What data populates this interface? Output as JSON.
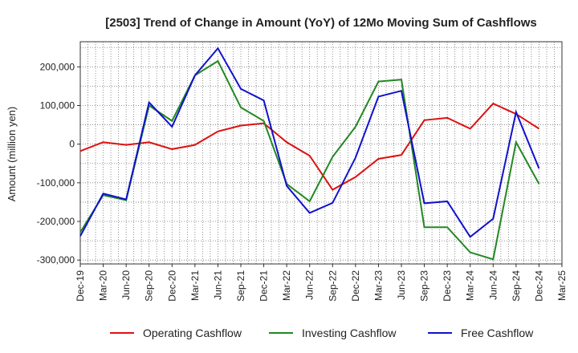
{
  "chart_data": {
    "type": "line",
    "title": "[2503]  Trend of Change in Amount (YoY) of 12Mo Moving Sum of Cashflows",
    "xlabel": "",
    "ylabel": "Amount (million yen)",
    "ylim": [
      -310000,
      265000
    ],
    "yticks": [
      -300000,
      -200000,
      -100000,
      0,
      100000,
      200000
    ],
    "ytick_labels": [
      "-300,000",
      "-200,000",
      "-100,000",
      "0",
      "100,000",
      "200,000"
    ],
    "grid": true,
    "legend_position": "bottom",
    "categories": [
      "Dec-19",
      "Mar-20",
      "Jun-20",
      "Sep-20",
      "Dec-20",
      "Mar-21",
      "Jun-21",
      "Sep-21",
      "Dec-21",
      "Mar-22",
      "Jun-22",
      "Sep-22",
      "Dec-22",
      "Mar-23",
      "Jun-23",
      "Sep-23",
      "Dec-23",
      "Mar-24",
      "Jun-24",
      "Sep-24",
      "Dec-24",
      "Mar-25"
    ],
    "series": [
      {
        "name": "Operating Cashflow",
        "color": "#dd1111",
        "values": [
          -18000,
          5000,
          -2000,
          5000,
          -13000,
          -2000,
          33000,
          48000,
          54000,
          5000,
          -30000,
          -118000,
          -85000,
          -38000,
          -28000,
          62000,
          68000,
          40000,
          105000,
          78000,
          40000,
          null
        ]
      },
      {
        "name": "Investing Cashflow",
        "color": "#228822",
        "values": [
          -228000,
          -132000,
          -145000,
          100000,
          60000,
          178000,
          215000,
          95000,
          60000,
          -103000,
          -148000,
          -33000,
          45000,
          162000,
          167000,
          -215000,
          -215000,
          -280000,
          -298000,
          5000,
          -103000,
          null
        ]
      },
      {
        "name": "Free Cashflow",
        "color": "#1111cc",
        "values": [
          -238000,
          -128000,
          -143000,
          108000,
          45000,
          178000,
          248000,
          143000,
          113000,
          -108000,
          -178000,
          -152000,
          -35000,
          123000,
          138000,
          -153000,
          -148000,
          -240000,
          -193000,
          83000,
          -63000,
          null
        ]
      }
    ]
  }
}
